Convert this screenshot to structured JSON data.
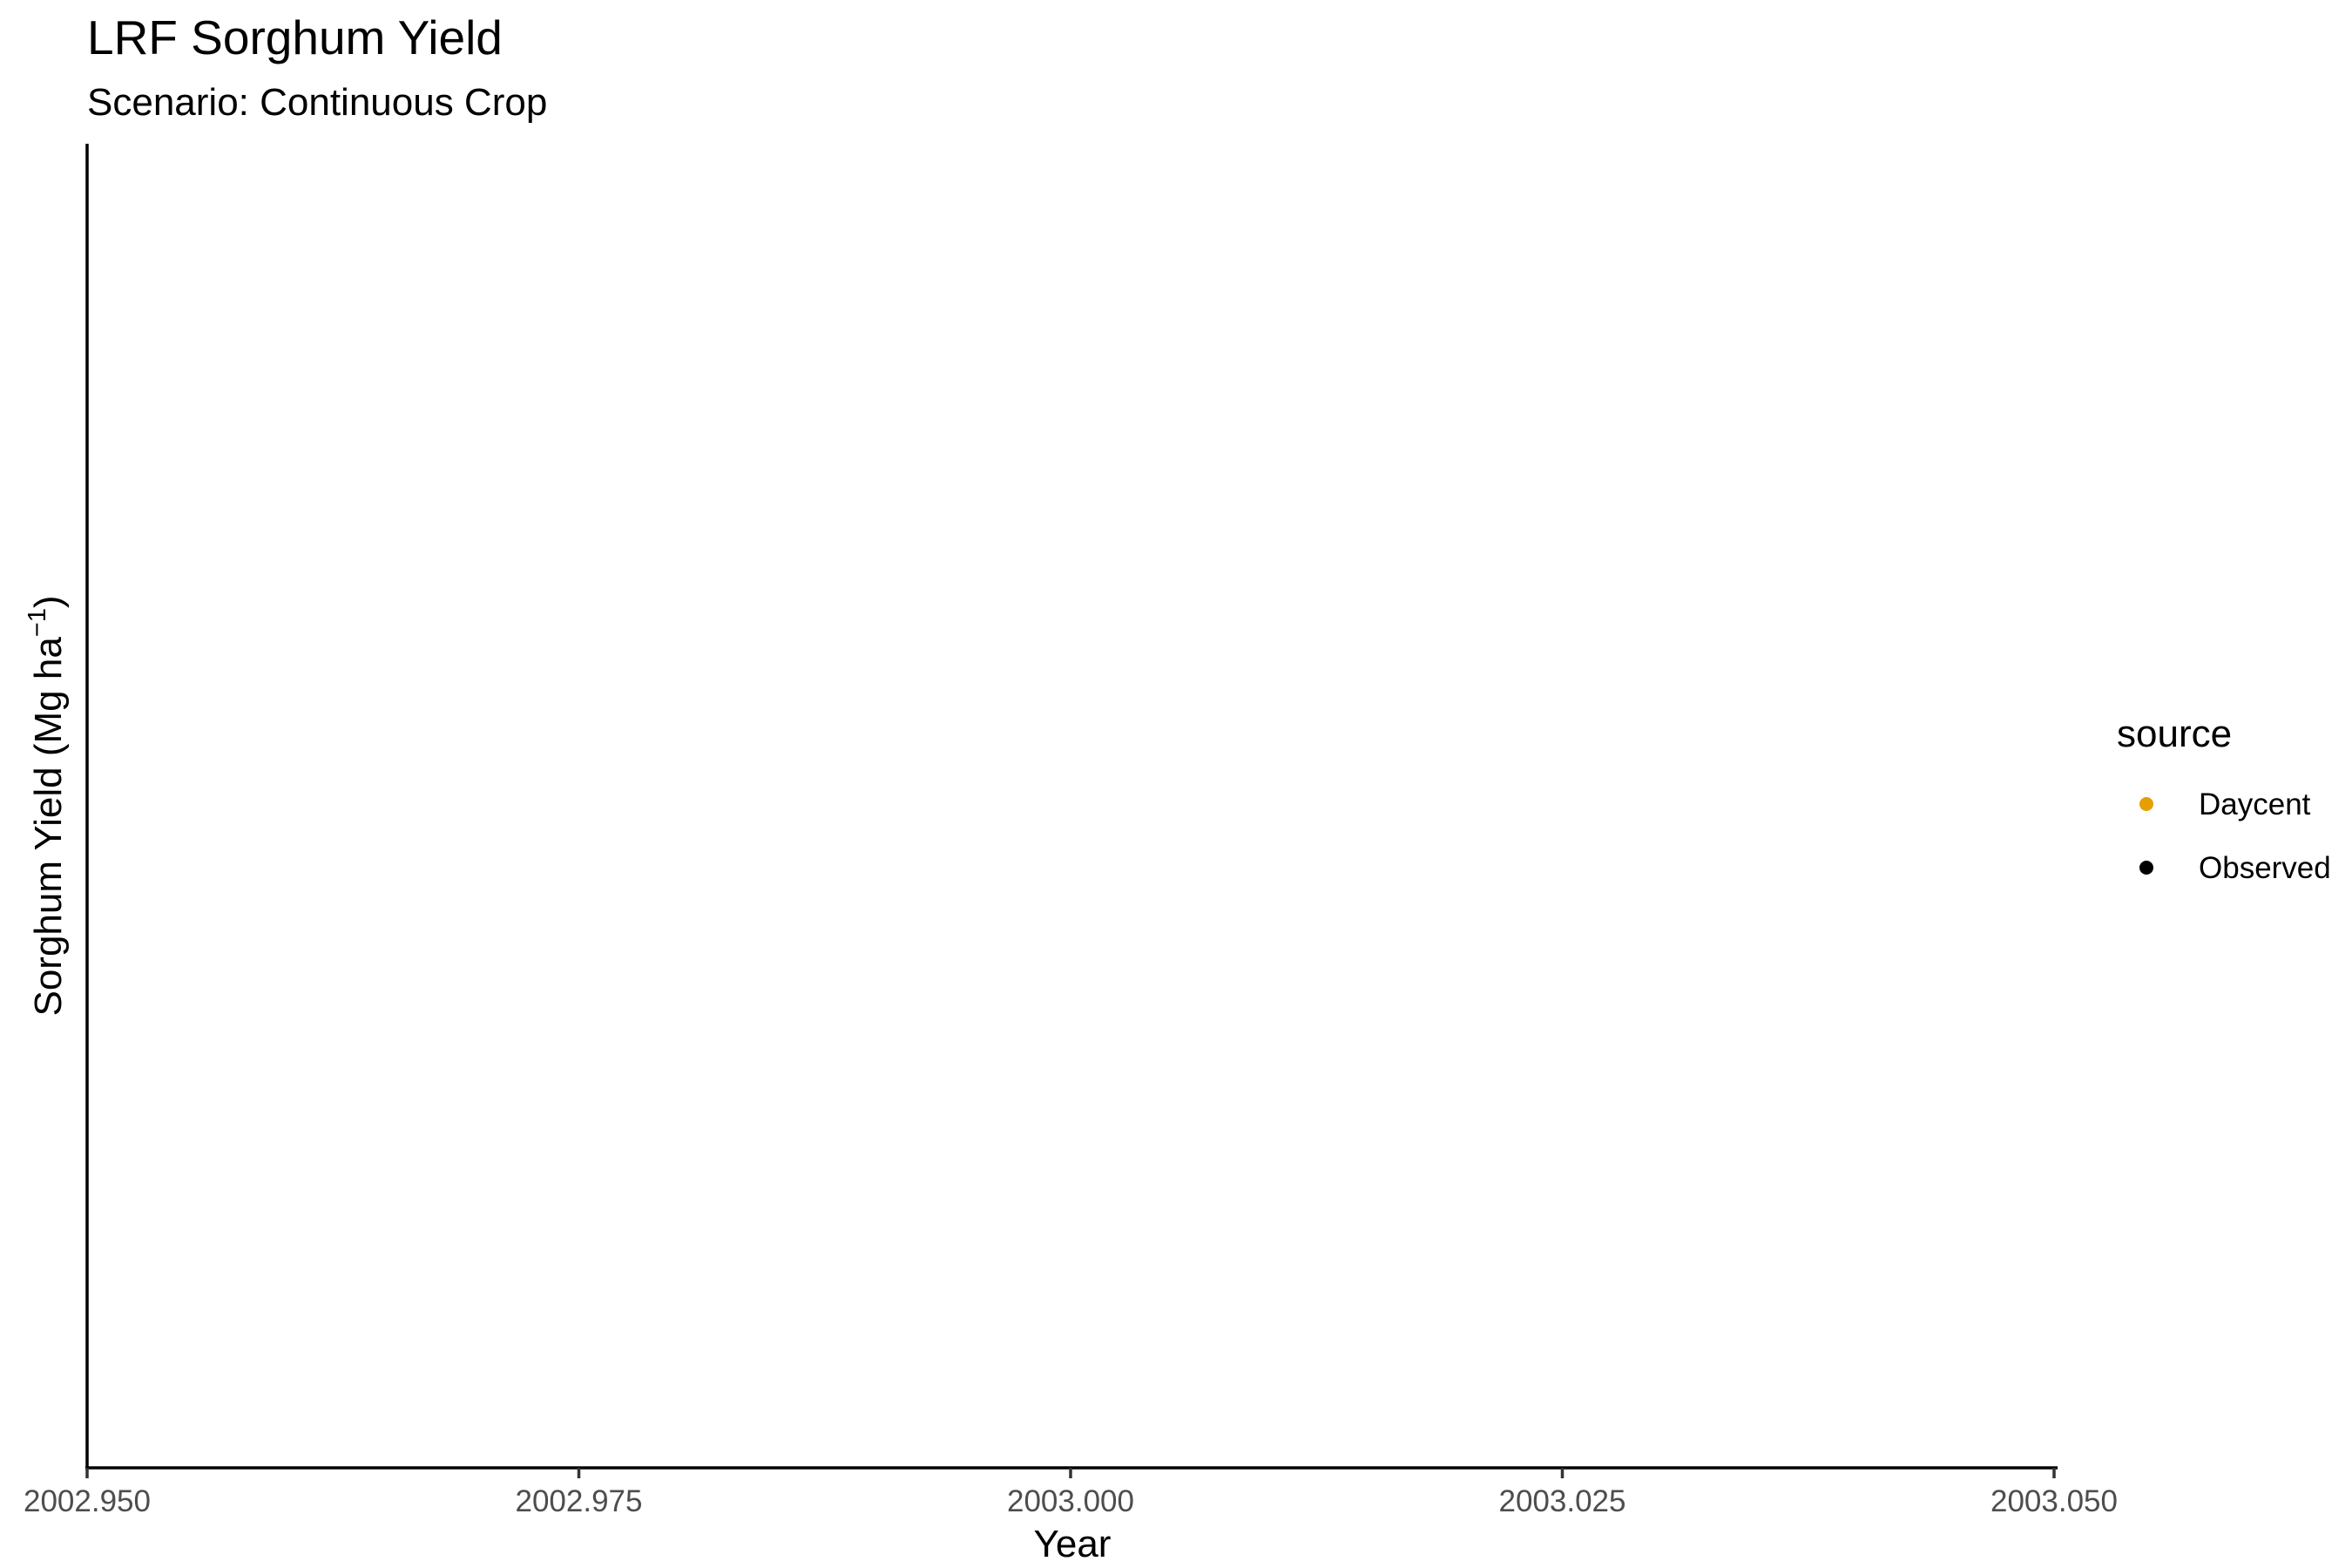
{
  "chart_data": {
    "type": "scatter",
    "title": "LRF Sorghum Yield",
    "subtitle": "Scenario: Continuous Crop",
    "xlabel": "Year",
    "ylabel_main": "Sorghum Yield (Mg ha",
    "ylabel_sup": "−1",
    "ylabel_close": ")",
    "xlim": [
      2002.95,
      2003.05
    ],
    "x_ticks": [
      {
        "value": 2002.95,
        "label": "2002.950"
      },
      {
        "value": 2002.975,
        "label": "2002.975"
      },
      {
        "value": 2003.0,
        "label": "2003.000"
      },
      {
        "value": 2003.025,
        "label": "2003.025"
      },
      {
        "value": 2003.05,
        "label": "2003.050"
      }
    ],
    "grid": false,
    "legend": {
      "title": "source",
      "position": "right",
      "entries": [
        {
          "label": "Daycent",
          "color": "#E69F00"
        },
        {
          "label": "Observed",
          "color": "#000000"
        }
      ]
    },
    "series": [
      {
        "name": "Daycent",
        "color": "#E69F00",
        "points": []
      },
      {
        "name": "Observed",
        "color": "#000000",
        "points": []
      }
    ]
  }
}
